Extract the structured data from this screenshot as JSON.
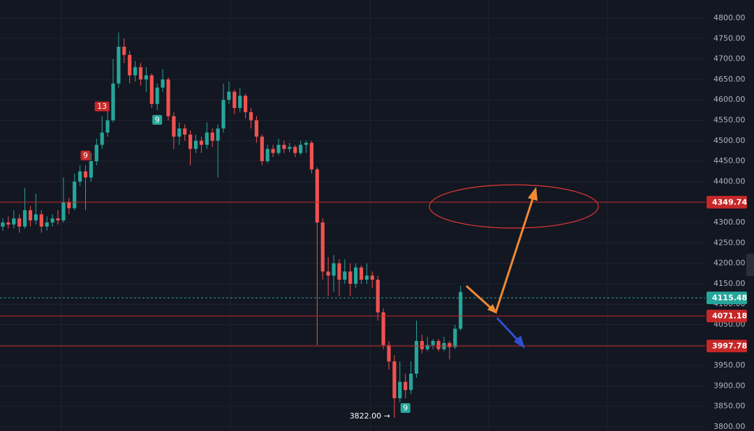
{
  "chart_data": {
    "type": "candlestick",
    "open": [
      4290,
      4300,
      4295,
      4310,
      4290,
      4330,
      4305,
      4320,
      4290,
      4300,
      4310,
      4305,
      4350,
      4335,
      4400,
      4425,
      4410,
      4450,
      4490,
      4520,
      4550,
      4640,
      4730,
      4710,
      4660,
      4680,
      4650,
      4660,
      4590,
      4630,
      4650,
      4560,
      4510,
      4530,
      4515,
      4480,
      4500,
      4490,
      4520,
      4500,
      4530,
      4600,
      4620,
      4580,
      4610,
      4570,
      4550,
      4510,
      4450,
      4480,
      4470,
      4490,
      4480,
      4485,
      4470,
      4490,
      4495,
      4430,
      4300,
      4180,
      4170,
      4200,
      4160,
      4180,
      4150,
      4190,
      4160,
      4170,
      4160,
      4080,
      4000,
      3960,
      3870,
      3910,
      3890,
      3930,
      4010,
      3990,
      4000,
      4010,
      3990,
      4005,
      3995,
      4040
    ],
    "high": [
      4310,
      4315,
      4330,
      4320,
      4385,
      4340,
      4370,
      4330,
      4315,
      4320,
      4330,
      4410,
      4360,
      4420,
      4440,
      4440,
      4470,
      4505,
      4560,
      4575,
      4700,
      4765,
      4750,
      4720,
      4695,
      4690,
      4680,
      4665,
      4640,
      4675,
      4655,
      4570,
      4545,
      4540,
      4525,
      4515,
      4510,
      4545,
      4530,
      4540,
      4640,
      4645,
      4625,
      4630,
      4615,
      4580,
      4560,
      4515,
      4490,
      4490,
      4505,
      4500,
      4495,
      4490,
      4500,
      4500,
      4500,
      4435,
      4310,
      4215,
      4220,
      4210,
      4210,
      4200,
      4200,
      4195,
      4200,
      4180,
      4170,
      4090,
      4010,
      3975,
      3960,
      3930,
      3960,
      4060,
      4025,
      4020,
      4015,
      4015,
      4020,
      4010,
      4050,
      4145
    ],
    "low": [
      4280,
      4285,
      4285,
      4275,
      4285,
      4290,
      4295,
      4275,
      4280,
      4290,
      4295,
      4300,
      4320,
      4330,
      4390,
      4330,
      4400,
      4440,
      4480,
      4510,
      4545,
      4630,
      4690,
      4640,
      4645,
      4635,
      4620,
      4580,
      4575,
      4620,
      4550,
      4480,
      4490,
      4500,
      4440,
      4470,
      4470,
      4480,
      4485,
      4410,
      4520,
      4590,
      4565,
      4570,
      4555,
      4530,
      4495,
      4440,
      4445,
      4460,
      4465,
      4470,
      4472,
      4460,
      4465,
      4470,
      4420,
      4000,
      4160,
      4120,
      4130,
      4120,
      4150,
      4120,
      4140,
      4150,
      4150,
      4140,
      4060,
      3990,
      3940,
      3822,
      3860,
      3870,
      3880,
      3920,
      3980,
      3985,
      3990,
      3985,
      3985,
      3965,
      3990,
      4035
    ],
    "close": [
      4300,
      4295,
      4310,
      4290,
      4330,
      4305,
      4320,
      4290,
      4300,
      4310,
      4305,
      4350,
      4335,
      4400,
      4425,
      4410,
      4450,
      4490,
      4520,
      4550,
      4640,
      4730,
      4710,
      4660,
      4680,
      4650,
      4660,
      4590,
      4630,
      4650,
      4560,
      4510,
      4530,
      4515,
      4480,
      4500,
      4490,
      4520,
      4500,
      4530,
      4600,
      4620,
      4580,
      4610,
      4570,
      4550,
      4510,
      4450,
      4480,
      4470,
      4490,
      4480,
      4485,
      4470,
      4490,
      4495,
      4430,
      4300,
      4180,
      4170,
      4200,
      4160,
      4180,
      4150,
      4190,
      4160,
      4170,
      4160,
      4080,
      4000,
      3960,
      3870,
      3910,
      3890,
      3930,
      4010,
      3990,
      4000,
      4010,
      3990,
      4005,
      3995,
      4040,
      4130
    ],
    "up_color": "#26a69a",
    "down_color": "#ef5350",
    "ylim": [
      3800,
      4800
    ],
    "yticks": [
      {
        "value": 3800,
        "label": "3800.00"
      },
      {
        "value": 3850,
        "label": "3850.00"
      },
      {
        "value": 3900,
        "label": "3900.00"
      },
      {
        "value": 3950,
        "label": "3950.00"
      },
      {
        "value": 4000,
        "label": "4000.00"
      },
      {
        "value": 4050,
        "label": "4050.00"
      },
      {
        "value": 4100,
        "label": "4100.00"
      },
      {
        "value": 4150,
        "label": "4150.00"
      },
      {
        "value": 4200,
        "label": "4200.00"
      },
      {
        "value": 4250,
        "label": "4250.00"
      },
      {
        "value": 4300,
        "label": "4300.00"
      },
      {
        "value": 4350,
        "label": "4350.00"
      },
      {
        "value": 4400,
        "label": "4400.00"
      },
      {
        "value": 4450,
        "label": "4450.00"
      },
      {
        "value": 4500,
        "label": "4500.00"
      },
      {
        "value": 4550,
        "label": "4550.00"
      },
      {
        "value": 4600,
        "label": "4600.00"
      },
      {
        "value": 4650,
        "label": "4650.00"
      },
      {
        "value": 4700,
        "label": "4700.00"
      },
      {
        "value": 4750,
        "label": "4750.00"
      },
      {
        "value": 4800,
        "label": "4800.00"
      }
    ],
    "grid": true,
    "levels": [
      {
        "value": 4349.74,
        "color": "#c62828",
        "style": "solid"
      },
      {
        "value": 4115.48,
        "color": "#26a69a",
        "style": "dashed"
      },
      {
        "value": 4071.18,
        "color": "#c62828",
        "style": "solid"
      },
      {
        "value": 3997.78,
        "color": "#c62828",
        "style": "solid"
      }
    ],
    "annotations": [
      "9",
      "13",
      "9",
      "9",
      "3822.00 →"
    ]
  }
}
